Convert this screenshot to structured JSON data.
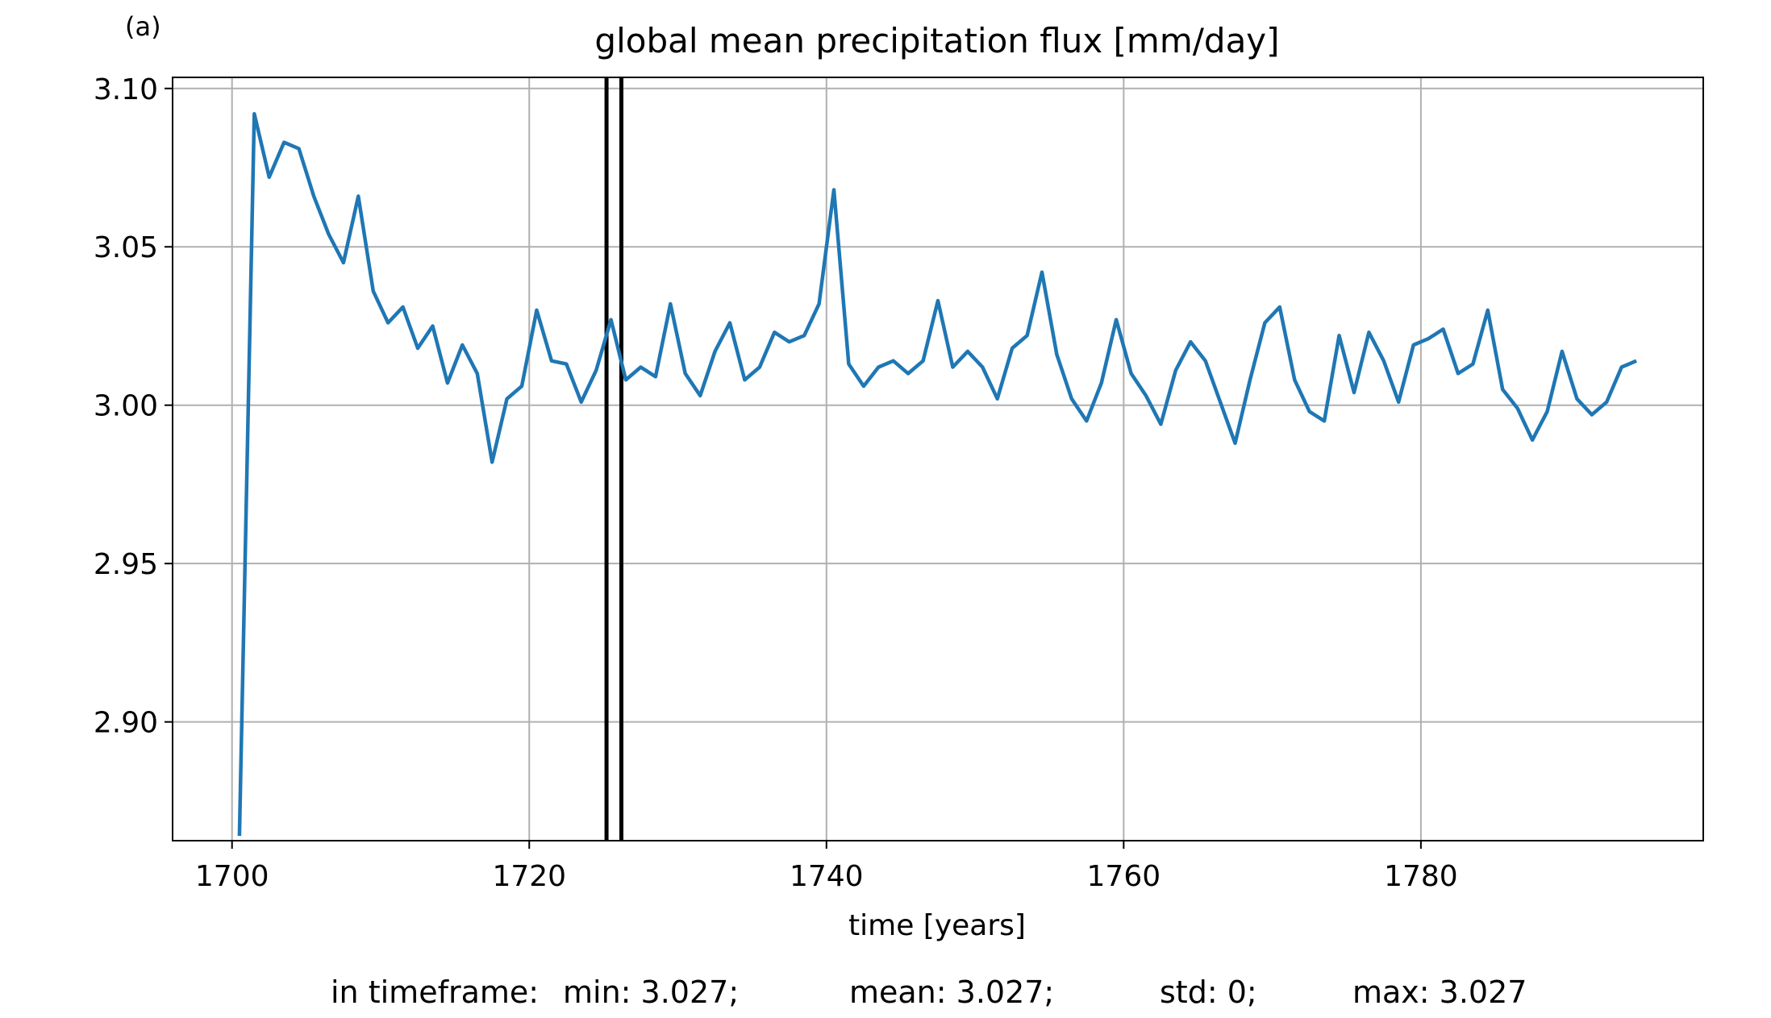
{
  "panel_label": "(a)",
  "footer": {
    "prefix": "in timeframe:",
    "min": "min: 3.027;",
    "mean": "mean: 3.027;",
    "std": "std: 0;",
    "max": "max: 3.027"
  },
  "colors": {
    "series": "#1f77b4",
    "grid": "#b0b0b0",
    "marker": "#000000"
  },
  "chart_data": {
    "type": "line",
    "title": "global mean precipitation flux [mm/day]",
    "xlabel": "time [years]",
    "ylabel": "",
    "xlim": [
      1696,
      1799
    ],
    "ylim": [
      2.8625,
      3.1035
    ],
    "xticks": [
      1700,
      1720,
      1740,
      1760,
      1780
    ],
    "yticks": [
      2.9,
      2.95,
      3.0,
      3.05,
      3.1
    ],
    "ytick_labels": [
      "2.90",
      "2.95",
      "3.00",
      "3.05",
      "3.10"
    ],
    "grid": true,
    "vertical_lines": [
      1725.2,
      1726.2
    ],
    "series": [
      {
        "x": [
          1700.5,
          1701.5,
          1702.5,
          1703.5,
          1704.5,
          1705.5,
          1706.5,
          1707.5,
          1708.5,
          1709.5,
          1710.5,
          1711.5,
          1712.5,
          1713.5,
          1714.5,
          1715.5,
          1716.5,
          1717.5,
          1718.5,
          1719.5,
          1720.5,
          1721.5,
          1722.5,
          1723.5,
          1724.5,
          1725.5,
          1726.5,
          1727.5,
          1728.5,
          1729.5,
          1730.5,
          1731.5,
          1732.5,
          1733.5,
          1734.5,
          1735.5,
          1736.5,
          1737.5,
          1738.5,
          1739.5,
          1740.5,
          1741.5,
          1742.5,
          1743.5,
          1744.5,
          1745.5,
          1746.5,
          1747.5,
          1748.5,
          1749.5,
          1750.5,
          1751.5,
          1752.5,
          1753.5,
          1754.5,
          1755.5,
          1756.5,
          1757.5,
          1758.5,
          1759.5,
          1760.5,
          1761.5,
          1762.5,
          1763.5,
          1764.5,
          1765.5,
          1766.5,
          1767.5,
          1768.5,
          1769.5,
          1770.5,
          1771.5,
          1772.5,
          1773.5,
          1774.5,
          1775.5,
          1776.5,
          1777.5,
          1778.5,
          1779.5,
          1780.5,
          1781.5,
          1782.5,
          1783.5,
          1784.5,
          1785.5,
          1786.5,
          1787.5,
          1788.5,
          1789.5,
          1790.5,
          1791.5,
          1792.5,
          1793.5,
          1794.5
        ],
        "y": [
          2.864,
          3.092,
          3.072,
          3.083,
          3.081,
          3.066,
          3.054,
          3.045,
          3.066,
          3.036,
          3.026,
          3.031,
          3.018,
          3.025,
          3.007,
          3.019,
          3.01,
          2.982,
          3.002,
          3.006,
          3.03,
          3.014,
          3.013,
          3.001,
          3.011,
          3.027,
          3.008,
          3.012,
          3.009,
          3.032,
          3.01,
          3.003,
          3.017,
          3.026,
          3.008,
          3.012,
          3.023,
          3.02,
          3.022,
          3.032,
          3.068,
          3.013,
          3.006,
          3.012,
          3.014,
          3.01,
          3.014,
          3.033,
          3.012,
          3.017,
          3.012,
          3.002,
          3.018,
          3.022,
          3.042,
          3.016,
          3.002,
          2.995,
          3.007,
          3.027,
          3.01,
          3.003,
          2.994,
          3.011,
          3.02,
          3.014,
          3.001,
          2.988,
          3.008,
          3.026,
          3.031,
          3.008,
          2.998,
          2.995,
          3.022,
          3.004,
          3.023,
          3.014,
          3.001,
          3.019,
          3.021,
          3.024,
          3.01,
          3.013,
          3.03,
          3.005,
          2.999,
          2.989,
          2.998,
          3.017,
          3.002,
          2.997,
          3.001,
          3.012,
          3.014
        ]
      }
    ]
  }
}
